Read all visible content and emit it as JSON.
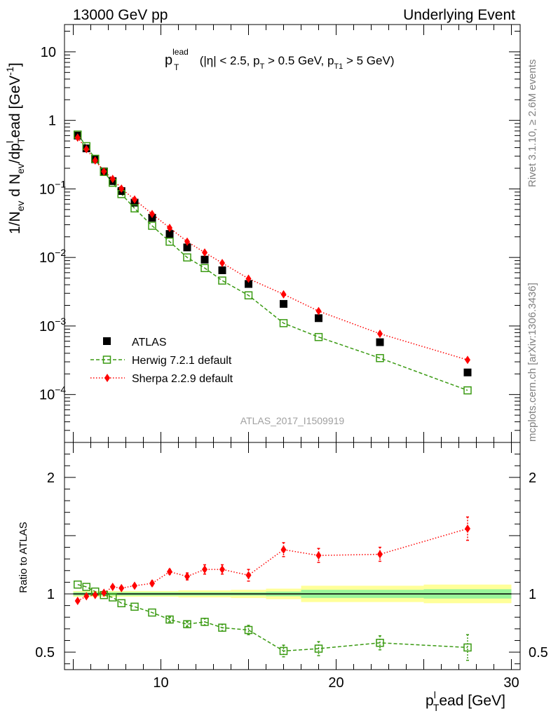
{
  "header": {
    "left": "13000 GeV pp",
    "right": "Underlying Event"
  },
  "annotation": {
    "base": "p",
    "sup": "lead",
    "sub": "T",
    "cond_1": " (|η| < 2.5, p",
    "cond_sub_1": "T",
    "cond_2": " > 0.5 GeV, p",
    "cond_sub_2": "T1",
    "cond_3": " > 5 GeV)"
  },
  "analysis_id": "ATLAS_2017_I1509919",
  "side_labels": {
    "rivet": "Rivet 3.1.10, ≥ 2.6M events",
    "mcplots": "mcplots.cern.ch [arXiv:1306.3436]"
  },
  "axes": {
    "ylabel_top": {
      "a": "1/N",
      "a_sub": "ev",
      "b": " d N",
      "b_sub": "ev",
      "c": "/dp",
      "c_sub": "T",
      "c_sup": "l",
      "d": "ead [GeV",
      "d_sup": "-1",
      "e": "]"
    },
    "ylabel_bottom": "Ratio to ATLAS",
    "xlabel": {
      "a": "p",
      "a_sub": "T",
      "a_sup": "l",
      "b": "ead [GeV]"
    }
  },
  "legend": {
    "atlas": "ATLAS",
    "herwig": "Herwig 7.2.1 default",
    "sherpa": "Sherpa 2.2.9 default"
  },
  "colors": {
    "herwig": "#3a9a12",
    "sherpa": "#ff0000",
    "band_inner": "#99f599",
    "band_outer": "#ffff99"
  },
  "chart_data": [
    {
      "type": "scatter",
      "panel": "main",
      "yscale": "log",
      "xlim": [
        4.5,
        30.5
      ],
      "ylim": [
        2e-05,
        25
      ],
      "x_ticks": [
        10,
        20,
        30
      ],
      "y_ticks": [
        {
          "value": 0.0001,
          "mant": "10",
          "exp": "−4"
        },
        {
          "value": 0.001,
          "mant": "10",
          "exp": "−3"
        },
        {
          "value": 0.01,
          "mant": "10",
          "exp": "−2"
        },
        {
          "value": 0.1,
          "mant": "10",
          "exp": "−1"
        },
        {
          "value": 1,
          "mant": "1",
          "exp": ""
        },
        {
          "value": 10,
          "mant": "10",
          "exp": ""
        }
      ],
      "series": [
        {
          "name": "ATLAS",
          "x": [
            5.25,
            5.75,
            6.25,
            6.75,
            7.25,
            7.75,
            8.5,
            9.5,
            10.5,
            11.5,
            12.5,
            13.5,
            15,
            17,
            19,
            22.5,
            27.5
          ],
          "y": [
            0.6,
            0.39,
            0.27,
            0.18,
            0.13,
            0.093,
            0.063,
            0.038,
            0.022,
            0.014,
            0.0093,
            0.0065,
            0.0041,
            0.0021,
            0.0013,
            0.00058,
            0.00021
          ]
        },
        {
          "name": "Herwig 7.2.1 default",
          "x": [
            5.25,
            5.75,
            6.25,
            6.75,
            7.25,
            7.75,
            8.5,
            9.5,
            10.5,
            11.5,
            12.5,
            13.5,
            15,
            17,
            19,
            22.5,
            27.5
          ],
          "y": [
            0.62,
            0.42,
            0.275,
            0.177,
            0.123,
            0.084,
            0.052,
            0.029,
            0.017,
            0.01,
            0.007,
            0.0046,
            0.0028,
            0.0011,
            0.00069,
            0.00034,
            0.000115
          ]
        },
        {
          "name": "Sherpa 2.2.9 default",
          "x": [
            5.25,
            5.75,
            6.25,
            6.75,
            7.25,
            7.75,
            8.5,
            9.5,
            10.5,
            11.5,
            12.5,
            13.5,
            15,
            17,
            19,
            22.5,
            27.5
          ],
          "y": [
            0.56,
            0.38,
            0.26,
            0.18,
            0.14,
            0.101,
            0.07,
            0.043,
            0.027,
            0.017,
            0.0118,
            0.0083,
            0.0049,
            0.0029,
            0.00165,
            0.00077,
            0.00032
          ]
        }
      ]
    },
    {
      "type": "scatter",
      "panel": "ratio",
      "xlim": [
        4.5,
        30.5
      ],
      "ylim": [
        0.35,
        2.3
      ],
      "x_ticks": [
        10,
        20,
        30
      ],
      "y_ticks": [
        0.5,
        1,
        2
      ],
      "y_tick_labels": [
        "0.5",
        "1",
        "2"
      ],
      "band": {
        "x_edges": [
          5,
          5.5,
          6,
          6.5,
          7,
          7.5,
          8,
          9,
          10,
          11,
          12,
          13,
          14,
          16,
          18,
          20,
          25,
          30
        ],
        "inner": [
          0.015,
          0.015,
          0.015,
          0.015,
          0.015,
          0.015,
          0.015,
          0.015,
          0.015,
          0.015,
          0.015,
          0.015,
          0.015,
          0.02,
          0.035,
          0.035,
          0.04
        ],
        "outer": [
          0.025,
          0.025,
          0.025,
          0.025,
          0.025,
          0.025,
          0.025,
          0.025,
          0.025,
          0.03,
          0.03,
          0.03,
          0.035,
          0.045,
          0.07,
          0.07,
          0.08
        ]
      },
      "series": [
        {
          "name": "Herwig 7.2.1 default",
          "x": [
            5.25,
            5.75,
            6.25,
            6.75,
            7.25,
            7.75,
            8.5,
            9.5,
            10.5,
            11.5,
            12.5,
            13.5,
            15,
            17,
            19,
            22.5,
            27.5
          ],
          "y": [
            1.08,
            1.06,
            1.02,
            0.99,
            0.97,
            0.92,
            0.89,
            0.84,
            0.78,
            0.74,
            0.76,
            0.71,
            0.69,
            0.51,
            0.53,
            0.58,
            0.54
          ],
          "err": [
            0.01,
            0.01,
            0.01,
            0.01,
            0.01,
            0.01,
            0.01,
            0.01,
            0.02,
            0.02,
            0.03,
            0.03,
            0.04,
            0.05,
            0.06,
            0.06,
            0.11
          ]
        },
        {
          "name": "Sherpa 2.2.9 default",
          "x": [
            5.25,
            5.75,
            6.25,
            6.75,
            7.25,
            7.75,
            8.5,
            9.5,
            10.5,
            11.5,
            12.5,
            13.5,
            15,
            17,
            19,
            22.5,
            27.5
          ],
          "y": [
            0.94,
            0.98,
            0.99,
            1.01,
            1.06,
            1.05,
            1.07,
            1.09,
            1.19,
            1.15,
            1.21,
            1.21,
            1.16,
            1.38,
            1.33,
            1.34,
            1.56
          ],
          "err": [
            0.01,
            0.01,
            0.01,
            0.01,
            0.01,
            0.01,
            0.01,
            0.02,
            0.02,
            0.03,
            0.04,
            0.04,
            0.05,
            0.06,
            0.06,
            0.06,
            0.1
          ]
        }
      ]
    }
  ]
}
